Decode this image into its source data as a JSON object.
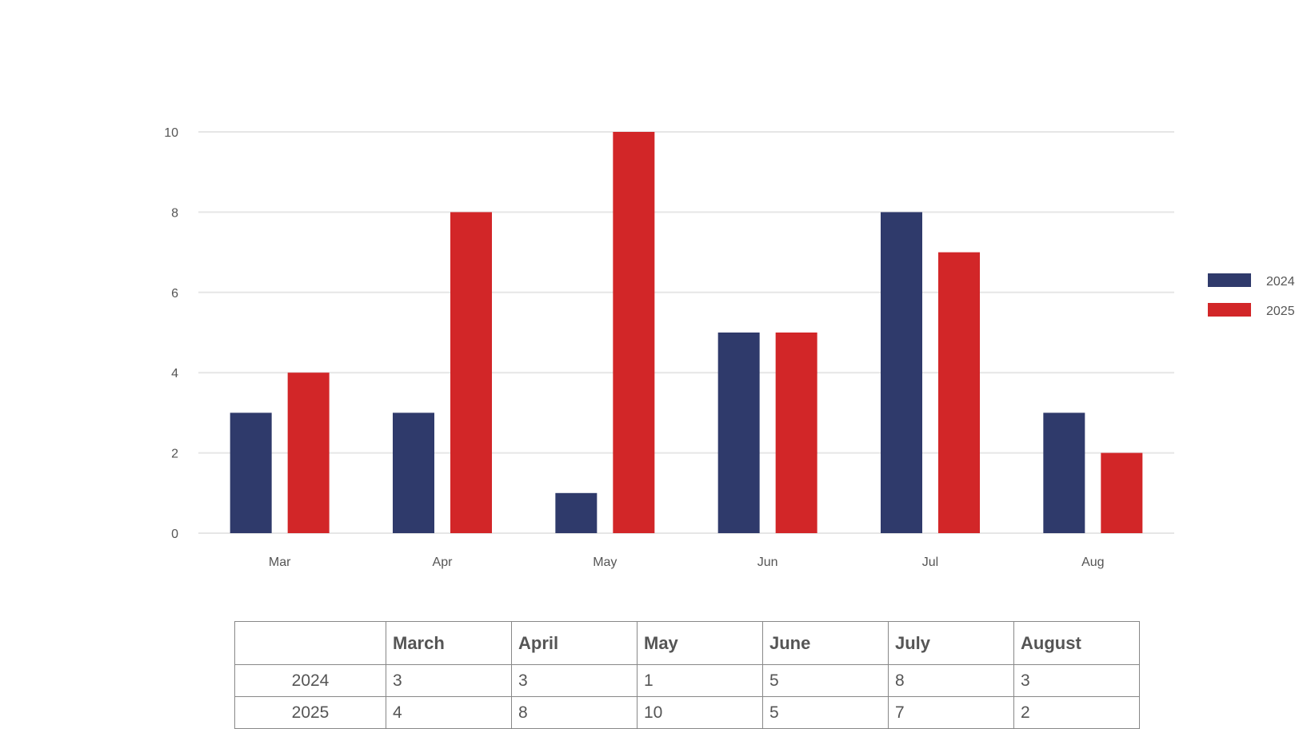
{
  "chart_data": {
    "type": "bar",
    "categories": [
      "Mar",
      "Apr",
      "May",
      "Jun",
      "Jul",
      "Aug"
    ],
    "series": [
      {
        "name": "2024",
        "values": [
          3,
          3,
          1,
          5,
          8,
          3
        ],
        "color": "#2f3a6b"
      },
      {
        "name": "2025",
        "values": [
          4,
          8,
          10,
          5,
          7,
          2
        ],
        "color": "#d22628"
      }
    ],
    "y_ticks": [
      "0",
      "2",
      "4",
      "6",
      "8",
      "10"
    ],
    "ylim": [
      0,
      10
    ],
    "grid": true,
    "legend": "right",
    "title": "",
    "xlabel": "",
    "ylabel": ""
  },
  "table": {
    "headers": [
      "",
      "March",
      "April",
      "May",
      "June",
      "July",
      "August"
    ],
    "rows": [
      {
        "label": "2024",
        "values": [
          "3",
          "3",
          "1",
          "5",
          "8",
          "3"
        ]
      },
      {
        "label": "2025",
        "values": [
          "4",
          "8",
          "10",
          "5",
          "7",
          "2"
        ]
      }
    ]
  }
}
